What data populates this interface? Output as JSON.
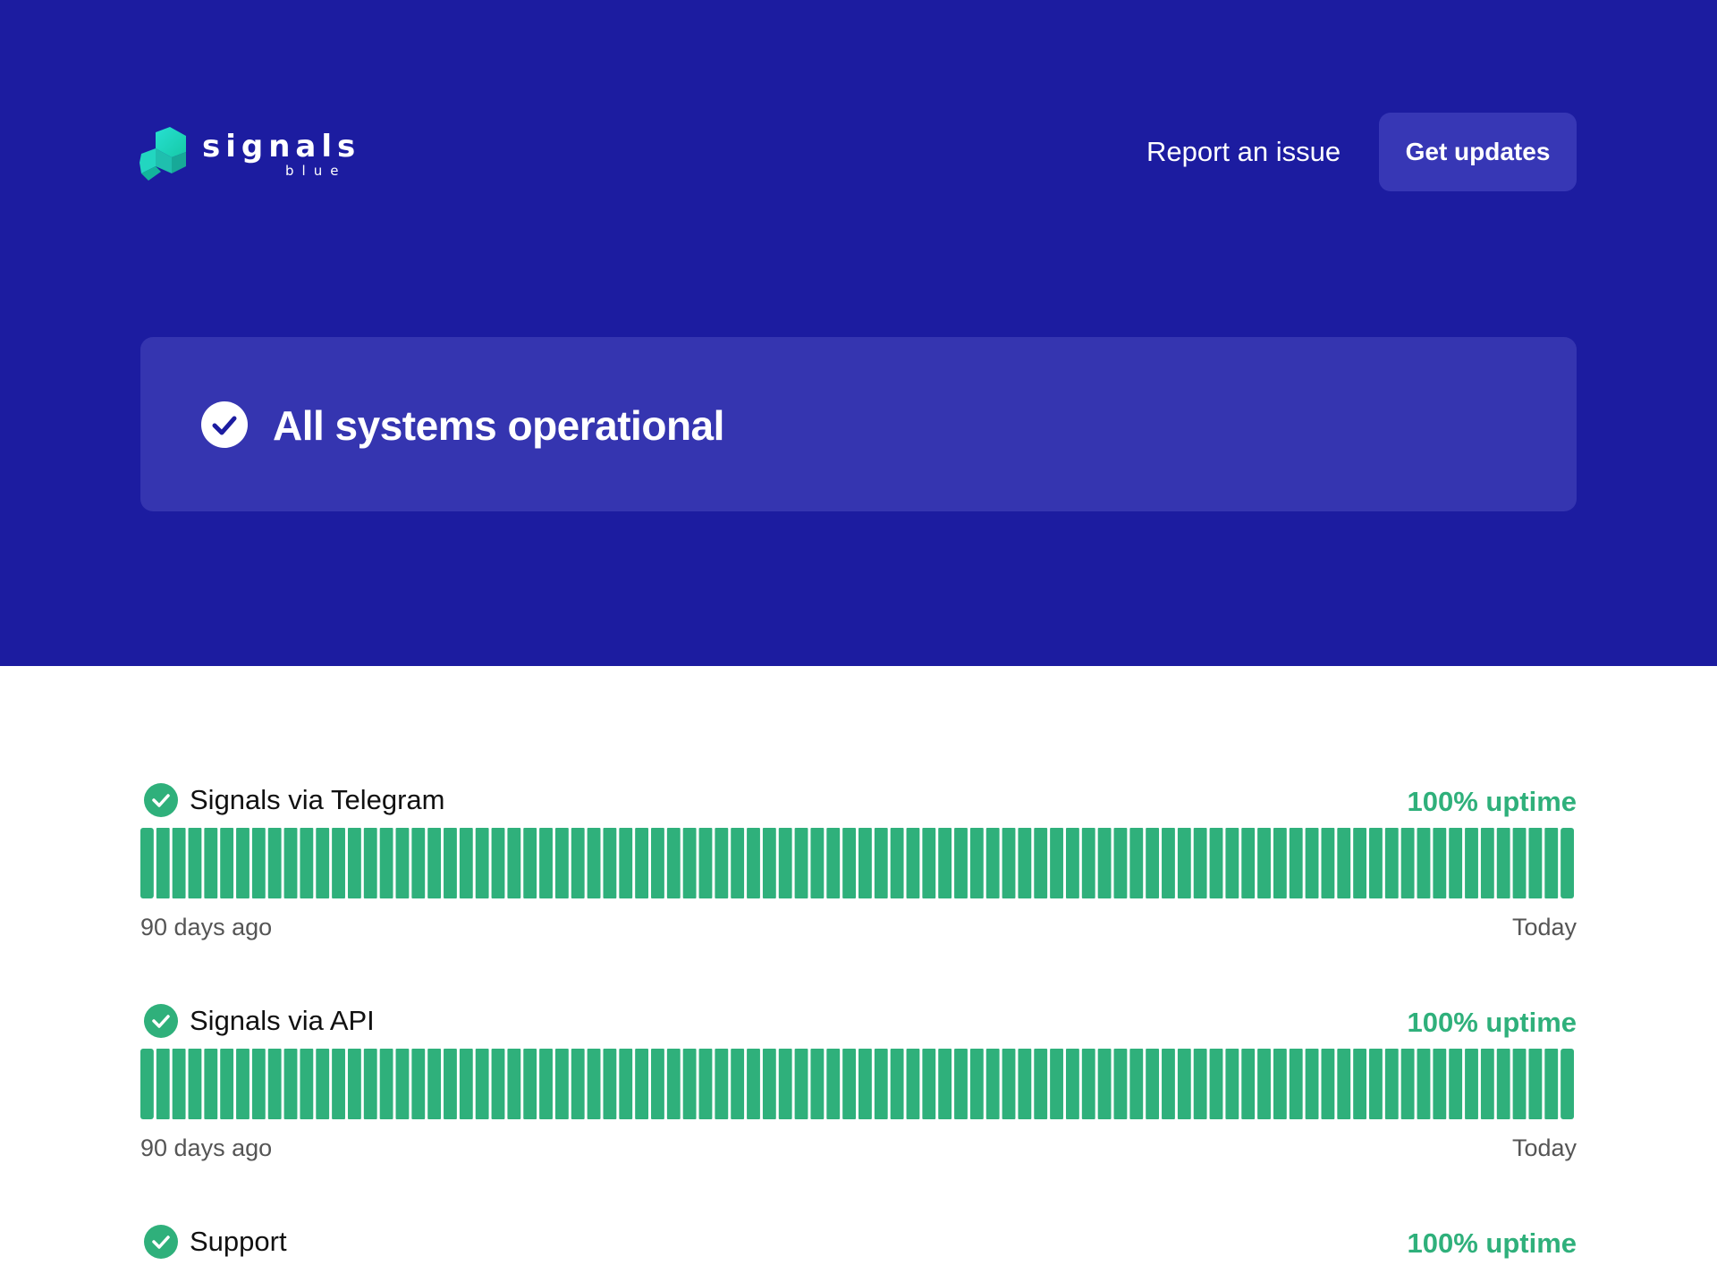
{
  "header": {
    "logo_word": "signals",
    "logo_sub": "blue",
    "report_link": "Report an issue",
    "updates_button": "Get updates"
  },
  "overall_status": {
    "text": "All systems operational"
  },
  "colors": {
    "hero_bg": "#1c1ca0",
    "card_bg": "#3535b0",
    "button_bg": "#3737b5",
    "operational": "#2fb07b"
  },
  "components": [
    {
      "name": "Signals via Telegram",
      "uptime": "100% uptime",
      "range_start": "90 days ago",
      "range_end": "Today",
      "days": 90,
      "status": "operational"
    },
    {
      "name": "Signals via API",
      "uptime": "100% uptime",
      "range_start": "90 days ago",
      "range_end": "Today",
      "days": 90,
      "status": "operational"
    },
    {
      "name": "Support",
      "uptime": "100% uptime",
      "status": "operational"
    }
  ]
}
